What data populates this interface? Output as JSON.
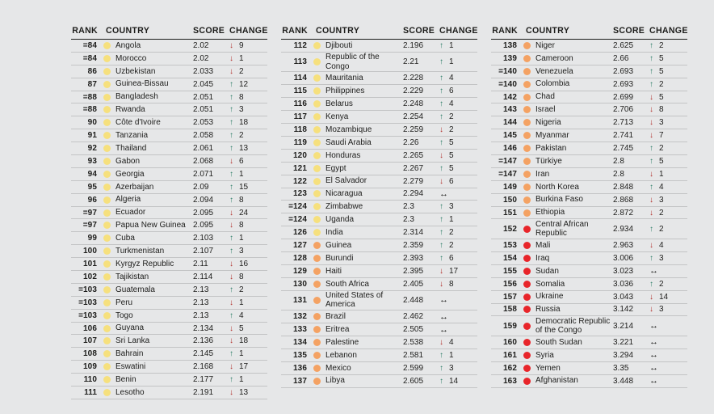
{
  "page": {
    "background": "#e6e7e8"
  },
  "headers": [
    "RANK",
    "COUNTRY",
    "SCORE",
    "CHANGE"
  ],
  "dot_colors": {
    "yellow": "#f6e07d",
    "orange": "#f4a263",
    "red": "#e8252a"
  },
  "change_colors": {
    "up": "#2e7f69",
    "down": "#b2332e",
    "same": "#1d1d1b"
  },
  "change_glyphs": {
    "up": "↑",
    "down": "↓",
    "same": "↔"
  },
  "tables": [
    {
      "rows": [
        {
          "rank": "=84",
          "country": "Angola",
          "dot": "yellow",
          "score": "2.02",
          "change_dir": "down",
          "change_value": "9"
        },
        {
          "rank": "=84",
          "country": "Morocco",
          "dot": "yellow",
          "score": "2.02",
          "change_dir": "down",
          "change_value": "1"
        },
        {
          "rank": "86",
          "country": "Uzbekistan",
          "dot": "yellow",
          "score": "2.033",
          "change_dir": "down",
          "change_value": "2"
        },
        {
          "rank": "87",
          "country": "Guinea-Bissau",
          "dot": "yellow",
          "score": "2.045",
          "change_dir": "up",
          "change_value": "12"
        },
        {
          "rank": "=88",
          "country": "Bangladesh",
          "dot": "yellow",
          "score": "2.051",
          "change_dir": "up",
          "change_value": "8"
        },
        {
          "rank": "=88",
          "country": "Rwanda",
          "dot": "yellow",
          "score": "2.051",
          "change_dir": "up",
          "change_value": "3"
        },
        {
          "rank": "90",
          "country": "Côte d'Ivoire",
          "dot": "yellow",
          "score": "2.053",
          "change_dir": "up",
          "change_value": "18"
        },
        {
          "rank": "91",
          "country": "Tanzania",
          "dot": "yellow",
          "score": "2.058",
          "change_dir": "up",
          "change_value": "2"
        },
        {
          "rank": "92",
          "country": "Thailand",
          "dot": "yellow",
          "score": "2.061",
          "change_dir": "up",
          "change_value": "13"
        },
        {
          "rank": "93",
          "country": "Gabon",
          "dot": "yellow",
          "score": "2.068",
          "change_dir": "down",
          "change_value": "6"
        },
        {
          "rank": "94",
          "country": "Georgia",
          "dot": "yellow",
          "score": "2.071",
          "change_dir": "up",
          "change_value": "1"
        },
        {
          "rank": "95",
          "country": "Azerbaijan",
          "dot": "yellow",
          "score": "2.09",
          "change_dir": "up",
          "change_value": "15"
        },
        {
          "rank": "96",
          "country": "Algeria",
          "dot": "yellow",
          "score": "2.094",
          "change_dir": "up",
          "change_value": "8"
        },
        {
          "rank": "=97",
          "country": "Ecuador",
          "dot": "yellow",
          "score": "2.095",
          "change_dir": "down",
          "change_value": "24"
        },
        {
          "rank": "=97",
          "country": "Papua New Guinea",
          "dot": "yellow",
          "score": "2.095",
          "change_dir": "down",
          "change_value": "8"
        },
        {
          "rank": "99",
          "country": "Cuba",
          "dot": "yellow",
          "score": "2.103",
          "change_dir": "up",
          "change_value": "1"
        },
        {
          "rank": "100",
          "country": "Turkmenistan",
          "dot": "yellow",
          "score": "2.107",
          "change_dir": "up",
          "change_value": "3"
        },
        {
          "rank": "101",
          "country": "Kyrgyz Republic",
          "dot": "yellow",
          "score": "2.11",
          "change_dir": "down",
          "change_value": "16"
        },
        {
          "rank": "102",
          "country": "Tajikistan",
          "dot": "yellow",
          "score": "2.114",
          "change_dir": "down",
          "change_value": "8"
        },
        {
          "rank": "=103",
          "country": "Guatemala",
          "dot": "yellow",
          "score": "2.13",
          "change_dir": "up",
          "change_value": "2"
        },
        {
          "rank": "=103",
          "country": "Peru",
          "dot": "yellow",
          "score": "2.13",
          "change_dir": "down",
          "change_value": "1"
        },
        {
          "rank": "=103",
          "country": "Togo",
          "dot": "yellow",
          "score": "2.13",
          "change_dir": "up",
          "change_value": "4"
        },
        {
          "rank": "106",
          "country": "Guyana",
          "dot": "yellow",
          "score": "2.134",
          "change_dir": "down",
          "change_value": "5"
        },
        {
          "rank": "107",
          "country": "Sri Lanka",
          "dot": "yellow",
          "score": "2.136",
          "change_dir": "down",
          "change_value": "18"
        },
        {
          "rank": "108",
          "country": "Bahrain",
          "dot": "yellow",
          "score": "2.145",
          "change_dir": "up",
          "change_value": "1"
        },
        {
          "rank": "109",
          "country": "Eswatini",
          "dot": "yellow",
          "score": "2.168",
          "change_dir": "down",
          "change_value": "17"
        },
        {
          "rank": "110",
          "country": "Benin",
          "dot": "yellow",
          "score": "2.177",
          "change_dir": "up",
          "change_value": "1"
        },
        {
          "rank": "111",
          "country": "Lesotho",
          "dot": "yellow",
          "score": "2.191",
          "change_dir": "down",
          "change_value": "13"
        }
      ]
    },
    {
      "rows": [
        {
          "rank": "112",
          "country": "Djibouti",
          "dot": "yellow",
          "score": "2.196",
          "change_dir": "up",
          "change_value": "1"
        },
        {
          "rank": "113",
          "country": "Republic of the Congo",
          "dot": "yellow",
          "score": "2.21",
          "change_dir": "up",
          "change_value": "1"
        },
        {
          "rank": "114",
          "country": "Mauritania",
          "dot": "yellow",
          "score": "2.228",
          "change_dir": "up",
          "change_value": "4"
        },
        {
          "rank": "115",
          "country": "Philippines",
          "dot": "yellow",
          "score": "2.229",
          "change_dir": "up",
          "change_value": "6"
        },
        {
          "rank": "116",
          "country": "Belarus",
          "dot": "yellow",
          "score": "2.248",
          "change_dir": "up",
          "change_value": "4"
        },
        {
          "rank": "117",
          "country": "Kenya",
          "dot": "yellow",
          "score": "2.254",
          "change_dir": "up",
          "change_value": "2"
        },
        {
          "rank": "118",
          "country": "Mozambique",
          "dot": "yellow",
          "score": "2.259",
          "change_dir": "down",
          "change_value": "2"
        },
        {
          "rank": "119",
          "country": "Saudi Arabia",
          "dot": "yellow",
          "score": "2.26",
          "change_dir": "up",
          "change_value": "5"
        },
        {
          "rank": "120",
          "country": "Honduras",
          "dot": "yellow",
          "score": "2.265",
          "change_dir": "down",
          "change_value": "5"
        },
        {
          "rank": "121",
          "country": "Egypt",
          "dot": "yellow",
          "score": "2.267",
          "change_dir": "up",
          "change_value": "5"
        },
        {
          "rank": "122",
          "country": "El Salvador",
          "dot": "yellow",
          "score": "2.279",
          "change_dir": "down",
          "change_value": "6"
        },
        {
          "rank": "123",
          "country": "Nicaragua",
          "dot": "yellow",
          "score": "2.294",
          "change_dir": "same",
          "change_value": ""
        },
        {
          "rank": "=124",
          "country": "Zimbabwe",
          "dot": "yellow",
          "score": "2.3",
          "change_dir": "up",
          "change_value": "3"
        },
        {
          "rank": "=124",
          "country": "Uganda",
          "dot": "yellow",
          "score": "2.3",
          "change_dir": "up",
          "change_value": "1"
        },
        {
          "rank": "126",
          "country": "India",
          "dot": "yellow",
          "score": "2.314",
          "change_dir": "up",
          "change_value": "2"
        },
        {
          "rank": "127",
          "country": "Guinea",
          "dot": "orange",
          "score": "2.359",
          "change_dir": "up",
          "change_value": "2"
        },
        {
          "rank": "128",
          "country": "Burundi",
          "dot": "orange",
          "score": "2.393",
          "change_dir": "up",
          "change_value": "6"
        },
        {
          "rank": "129",
          "country": "Haiti",
          "dot": "orange",
          "score": "2.395",
          "change_dir": "down",
          "change_value": "17"
        },
        {
          "rank": "130",
          "country": "South Africa",
          "dot": "orange",
          "score": "2.405",
          "change_dir": "down",
          "change_value": "8"
        },
        {
          "rank": "131",
          "country": "United States of America",
          "dot": "orange",
          "score": "2.448",
          "change_dir": "same",
          "change_value": ""
        },
        {
          "rank": "132",
          "country": "Brazil",
          "dot": "orange",
          "score": "2.462",
          "change_dir": "same",
          "change_value": ""
        },
        {
          "rank": "133",
          "country": "Eritrea",
          "dot": "orange",
          "score": "2.505",
          "change_dir": "same",
          "change_value": ""
        },
        {
          "rank": "134",
          "country": "Palestine",
          "dot": "orange",
          "score": "2.538",
          "change_dir": "down",
          "change_value": "4"
        },
        {
          "rank": "135",
          "country": "Lebanon",
          "dot": "orange",
          "score": "2.581",
          "change_dir": "up",
          "change_value": "1"
        },
        {
          "rank": "136",
          "country": "Mexico",
          "dot": "orange",
          "score": "2.599",
          "change_dir": "up",
          "change_value": "3"
        },
        {
          "rank": "137",
          "country": "Libya",
          "dot": "orange",
          "score": "2.605",
          "change_dir": "up",
          "change_value": "14"
        }
      ]
    },
    {
      "rows": [
        {
          "rank": "138",
          "country": "Niger",
          "dot": "orange",
          "score": "2.625",
          "change_dir": "up",
          "change_value": "2"
        },
        {
          "rank": "139",
          "country": "Cameroon",
          "dot": "orange",
          "score": "2.66",
          "change_dir": "up",
          "change_value": "5"
        },
        {
          "rank": "=140",
          "country": "Venezuela",
          "dot": "orange",
          "score": "2.693",
          "change_dir": "up",
          "change_value": "5"
        },
        {
          "rank": "=140",
          "country": "Colombia",
          "dot": "orange",
          "score": "2.693",
          "change_dir": "up",
          "change_value": "2"
        },
        {
          "rank": "142",
          "country": "Chad",
          "dot": "orange",
          "score": "2.699",
          "change_dir": "down",
          "change_value": "5"
        },
        {
          "rank": "143",
          "country": "Israel",
          "dot": "orange",
          "score": "2.706",
          "change_dir": "down",
          "change_value": "8"
        },
        {
          "rank": "144",
          "country": "Nigeria",
          "dot": "orange",
          "score": "2.713",
          "change_dir": "down",
          "change_value": "3"
        },
        {
          "rank": "145",
          "country": "Myanmar",
          "dot": "orange",
          "score": "2.741",
          "change_dir": "down",
          "change_value": "7"
        },
        {
          "rank": "146",
          "country": "Pakistan",
          "dot": "orange",
          "score": "2.745",
          "change_dir": "up",
          "change_value": "2"
        },
        {
          "rank": "=147",
          "country": "Türkiye",
          "dot": "orange",
          "score": "2.8",
          "change_dir": "up",
          "change_value": "5"
        },
        {
          "rank": "=147",
          "country": "Iran",
          "dot": "orange",
          "score": "2.8",
          "change_dir": "down",
          "change_value": "1"
        },
        {
          "rank": "149",
          "country": "North Korea",
          "dot": "orange",
          "score": "2.848",
          "change_dir": "up",
          "change_value": "4"
        },
        {
          "rank": "150",
          "country": "Burkina Faso",
          "dot": "orange",
          "score": "2.868",
          "change_dir": "down",
          "change_value": "3"
        },
        {
          "rank": "151",
          "country": "Ethiopia",
          "dot": "orange",
          "score": "2.872",
          "change_dir": "down",
          "change_value": "2"
        },
        {
          "rank": "152",
          "country": "Central African Republic",
          "dot": "red",
          "score": "2.934",
          "change_dir": "up",
          "change_value": "2"
        },
        {
          "rank": "153",
          "country": "Mali",
          "dot": "red",
          "score": "2.963",
          "change_dir": "down",
          "change_value": "4"
        },
        {
          "rank": "154",
          "country": "Iraq",
          "dot": "red",
          "score": "3.006",
          "change_dir": "up",
          "change_value": "3"
        },
        {
          "rank": "155",
          "country": "Sudan",
          "dot": "red",
          "score": "3.023",
          "change_dir": "same",
          "change_value": ""
        },
        {
          "rank": "156",
          "country": "Somalia",
          "dot": "red",
          "score": "3.036",
          "change_dir": "up",
          "change_value": "2"
        },
        {
          "rank": "157",
          "country": "Ukraine",
          "dot": "red",
          "score": "3.043",
          "change_dir": "down",
          "change_value": "14"
        },
        {
          "rank": "158",
          "country": "Russia",
          "dot": "red",
          "score": "3.142",
          "change_dir": "down",
          "change_value": "3"
        },
        {
          "rank": "159",
          "country": "Democratic Republic of the Congo",
          "dot": "red",
          "score": "3.214",
          "change_dir": "same",
          "change_value": ""
        },
        {
          "rank": "160",
          "country": "South Sudan",
          "dot": "red",
          "score": "3.221",
          "change_dir": "same",
          "change_value": ""
        },
        {
          "rank": "161",
          "country": "Syria",
          "dot": "red",
          "score": "3.294",
          "change_dir": "same",
          "change_value": ""
        },
        {
          "rank": "162",
          "country": "Yemen",
          "dot": "red",
          "score": "3.35",
          "change_dir": "same",
          "change_value": ""
        },
        {
          "rank": "163",
          "country": "Afghanistan",
          "dot": "red",
          "score": "3.448",
          "change_dir": "same",
          "change_value": ""
        }
      ]
    }
  ]
}
